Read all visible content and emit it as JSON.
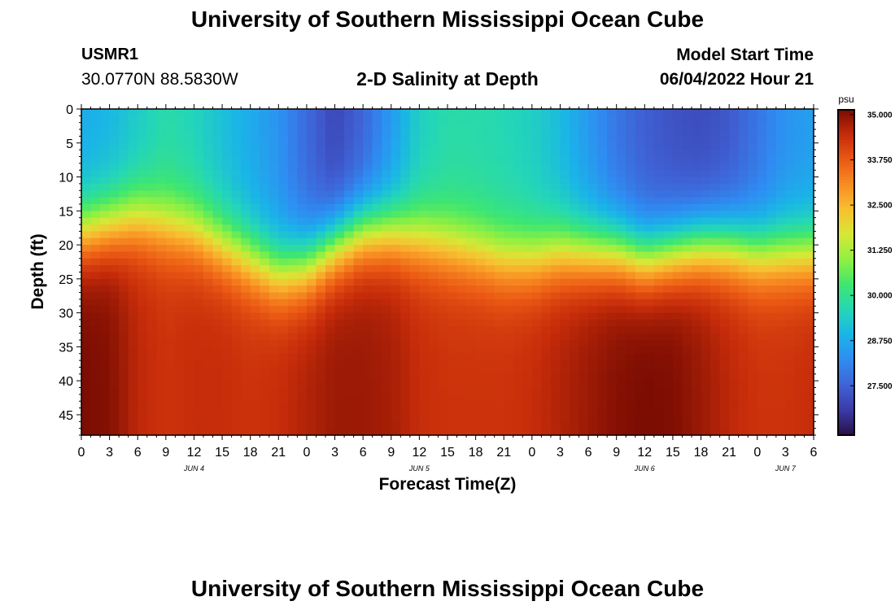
{
  "header": {
    "title": "University of Southern Mississippi Ocean Cube",
    "station": "USMR1",
    "coordinates": "30.0770N  88.5830W",
    "subtitle": "2-D Salinity at Depth",
    "model_start_label": "Model Start Time",
    "model_start_value": "06/04/2022 Hour 21"
  },
  "footer": {
    "title": "University of Southern Mississippi Ocean Cube"
  },
  "chart_data": {
    "type": "heatmap",
    "title": "2-D Salinity at Depth",
    "xlabel": "Forecast Time(Z)",
    "ylabel": "Depth (ft)",
    "x_range_hours": [
      0,
      78
    ],
    "x_tick_labels": [
      "0",
      "3",
      "6",
      "9",
      "12",
      "15",
      "18",
      "21",
      "0",
      "3",
      "6",
      "9",
      "12",
      "15",
      "18",
      "21",
      "0",
      "3",
      "6",
      "9",
      "12",
      "15",
      "18",
      "21",
      "0",
      "3",
      "6"
    ],
    "day_labels": [
      {
        "label": "JUN 4",
        "hour": 12
      },
      {
        "label": "JUN 5",
        "hour": 36
      },
      {
        "label": "JUN 6",
        "hour": 60
      },
      {
        "label": "JUN 7",
        "hour": 75
      }
    ],
    "y_range_ft": [
      0,
      48
    ],
    "y_ticks": [
      0,
      5,
      10,
      15,
      20,
      25,
      30,
      35,
      40,
      45
    ],
    "colorbar": {
      "unit": "psu",
      "min": 26.0,
      "max": 35.0,
      "tick_values": [
        35.0,
        33.75,
        32.5,
        31.25,
        30.0,
        28.75,
        27.5
      ],
      "tick_labels": [
        "35.000",
        "33.750",
        "32.500",
        "31.250",
        "30.000",
        "28.750",
        "27.500"
      ],
      "colors": [
        "#2a0f45",
        "#3b3aa8",
        "#3f63d6",
        "#2f8cf2",
        "#1ab4e8",
        "#24d6b8",
        "#3ee671",
        "#8ef042",
        "#d6e836",
        "#f7c031",
        "#f88d22",
        "#eb5a14",
        "#c62c0a",
        "#7a0c02"
      ]
    },
    "halocline_depth_ft": {
      "hours": [
        0,
        3,
        6,
        9,
        12,
        15,
        18,
        21,
        24,
        27,
        30,
        33,
        36,
        39,
        42,
        45,
        48,
        51,
        54,
        57,
        60,
        63,
        66,
        69,
        72,
        75,
        78
      ],
      "values": [
        18,
        17,
        16,
        17,
        18,
        20,
        22,
        24,
        23,
        20,
        18,
        18,
        19,
        20,
        21,
        22,
        22,
        21,
        21,
        21,
        22,
        21,
        20,
        20,
        21,
        21,
        21
      ]
    },
    "surface_salinity_psu": {
      "hours": [
        0,
        3,
        6,
        9,
        12,
        15,
        18,
        21,
        24,
        27,
        30,
        33,
        36,
        39,
        42,
        45,
        48,
        51,
        54,
        57,
        60,
        63,
        66,
        69,
        72,
        75,
        78
      ],
      "values": [
        28.6,
        28.8,
        29.2,
        29.6,
        29.4,
        29.0,
        28.6,
        28.2,
        27.5,
        26.9,
        27.4,
        28.3,
        29.3,
        29.6,
        29.6,
        29.5,
        29.3,
        28.9,
        28.3,
        27.7,
        27.3,
        27.1,
        27.0,
        27.2,
        27.7,
        28.2,
        28.4
      ]
    },
    "bottom_salinity_psu": {
      "hours": [
        0,
        3,
        6,
        9,
        12,
        15,
        18,
        21,
        24,
        27,
        30,
        33,
        36,
        39,
        42,
        45,
        48,
        51,
        54,
        57,
        60,
        63,
        66,
        69,
        72,
        75,
        78
      ],
      "values": [
        35.0,
        34.9,
        34.4,
        34.2,
        34.3,
        34.3,
        34.2,
        34.3,
        34.5,
        34.7,
        34.7,
        34.6,
        34.3,
        34.2,
        34.2,
        34.2,
        34.3,
        34.5,
        34.7,
        34.9,
        35.0,
        34.95,
        34.7,
        34.4,
        34.2,
        34.2,
        34.3
      ]
    }
  }
}
